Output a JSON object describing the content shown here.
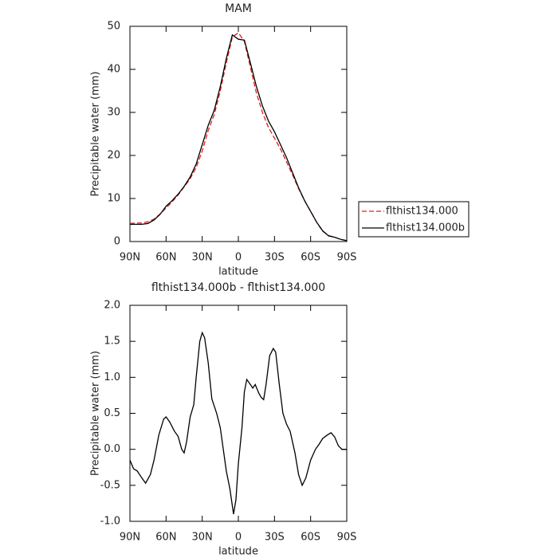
{
  "chart_data": [
    {
      "type": "line",
      "title": "MAM",
      "xlabel": "latitude",
      "ylabel": "Precipitable water (mm)",
      "legend": "right",
      "x": [
        90,
        85,
        80,
        75,
        70,
        65,
        60,
        55,
        50,
        45,
        40,
        35,
        30,
        25,
        20,
        15,
        10,
        5,
        0,
        -5,
        -10,
        -15,
        -20,
        -25,
        -30,
        -35,
        -40,
        -45,
        -50,
        -55,
        -60,
        -65,
        -70,
        -75,
        -80,
        -85,
        -90
      ],
      "series": [
        {
          "name": "flthist134.000",
          "color": "#e41a1c",
          "dashed": true,
          "values": [
            4.2,
            4.3,
            4.3,
            4.6,
            5.2,
            6.4,
            7.8,
            9.2,
            10.8,
            12.7,
            14.6,
            17.2,
            21.0,
            25.8,
            29.5,
            35.0,
            41.5,
            47.5,
            48.5,
            46.5,
            40.5,
            34.5,
            30.0,
            26.5,
            24.0,
            21.5,
            18.5,
            15.5,
            12.3,
            9.5,
            7.0,
            4.5,
            2.4,
            1.4,
            1.0,
            0.5,
            0.2
          ]
        },
        {
          "name": "flthist134.000b",
          "color": "#000000",
          "dashed": false,
          "values": [
            4.0,
            4.0,
            4.0,
            4.2,
            5.0,
            6.3,
            8.2,
            9.5,
            11.0,
            12.8,
            15.0,
            18.0,
            22.5,
            27.0,
            30.5,
            36.0,
            42.5,
            48.0,
            47.0,
            46.8,
            41.5,
            36.0,
            31.5,
            28.0,
            25.5,
            22.5,
            19.5,
            16.0,
            12.5,
            9.5,
            7.0,
            4.5,
            2.5,
            1.3,
            1.0,
            0.5,
            0.2
          ]
        }
      ],
      "xlim": [
        90,
        -90
      ],
      "xticks": [
        {
          "value": 90,
          "label": "90N"
        },
        {
          "value": 60,
          "label": "60N"
        },
        {
          "value": 30,
          "label": "30N"
        },
        0,
        {
          "value": -30,
          "label": "30S"
        },
        {
          "value": -60,
          "label": "60S"
        },
        {
          "value": -90,
          "label": "90S"
        }
      ],
      "ylim": [
        0,
        50
      ],
      "yticks": [
        0,
        10,
        20,
        30,
        40,
        50
      ]
    },
    {
      "type": "line",
      "title": "flthist134.000b - flthist134.000",
      "xlabel": "latitude",
      "ylabel": "Precipitable water (mm)",
      "color": "#000000",
      "x": [
        90,
        87,
        84,
        80,
        77,
        73,
        70,
        66,
        62,
        60,
        57,
        53,
        50,
        47,
        45,
        43,
        40,
        37,
        35,
        32,
        30,
        28,
        25,
        22,
        18,
        15,
        10,
        7,
        4,
        2,
        0,
        -3,
        -5,
        -7,
        -10,
        -12,
        -14,
        -17,
        -19,
        -21,
        -23,
        -26,
        -29,
        -31,
        -34,
        -37,
        -40,
        -43,
        -47,
        -50,
        -53,
        -56,
        -60,
        -64,
        -67,
        -70,
        -74,
        -77,
        -80,
        -83,
        -86,
        -90
      ],
      "values": [
        -0.15,
        -0.27,
        -0.3,
        -0.4,
        -0.47,
        -0.35,
        -0.15,
        0.2,
        0.42,
        0.45,
        0.38,
        0.25,
        0.18,
        0.0,
        -0.05,
        0.1,
        0.45,
        0.62,
        1.0,
        1.5,
        1.62,
        1.55,
        1.2,
        0.7,
        0.5,
        0.3,
        -0.3,
        -0.55,
        -0.9,
        -0.7,
        -0.2,
        0.3,
        0.8,
        0.97,
        0.9,
        0.85,
        0.9,
        0.78,
        0.72,
        0.69,
        0.9,
        1.3,
        1.4,
        1.35,
        0.9,
        0.5,
        0.35,
        0.25,
        -0.05,
        -0.35,
        -0.5,
        -0.4,
        -0.15,
        0.0,
        0.07,
        0.15,
        0.2,
        0.23,
        0.17,
        0.05,
        0.0,
        0.0
      ],
      "xlim": [
        90,
        -90
      ],
      "xticks": [
        {
          "value": 90,
          "label": "90N"
        },
        {
          "value": 60,
          "label": "60N"
        },
        {
          "value": 30,
          "label": "30N"
        },
        0,
        {
          "value": -30,
          "label": "30S"
        },
        {
          "value": -60,
          "label": "60S"
        },
        {
          "value": -90,
          "label": "90S"
        }
      ],
      "ylim": [
        -1,
        2
      ],
      "yticks": [
        {
          "value": -1,
          "label": "-1.0"
        },
        -0.5,
        {
          "value": 0,
          "label": "0.0"
        },
        0.5,
        {
          "value": 1,
          "label": "1.0"
        },
        1.5,
        {
          "value": 2,
          "label": "2.0"
        }
      ]
    }
  ]
}
